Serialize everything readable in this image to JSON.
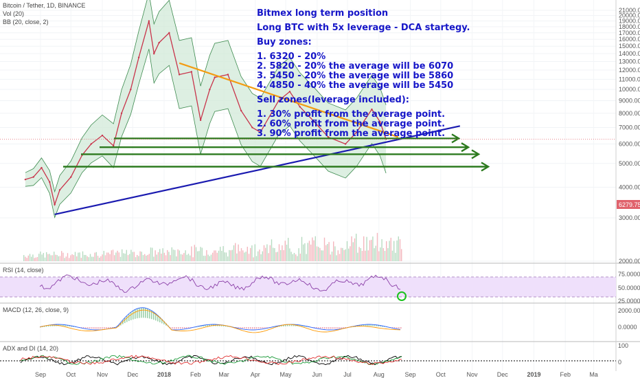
{
  "header": {
    "symbol": "Bitcoin / Tether, 1D, BINANCE",
    "vol_label": "Vol (20)",
    "bb_label": "BB (20, close, 2)"
  },
  "price_badge": "6279.75",
  "annotation": [
    "Bitmex long term position",
    "",
    "Long BTC with 5x leverage - DCA startegy.",
    "",
    "Buy zones:",
    "",
    "1. 6320 - 20%",
    "2. 5820 - 20% the average will be 6070",
    "3. 5450 - 20% the average will be 5860",
    "4. 4850 - 40% the average will be 5450",
    "",
    "Sell zones(leverage included):",
    "",
    "1. 30% profit from the average point.",
    "2. 60% profit from the average point.",
    "3. 90% profit from the average point."
  ],
  "panes": {
    "rsi": {
      "label": "RSI (14, close)",
      "ticks": [
        "75.0000",
        "50.0000",
        "25.0000"
      ]
    },
    "macd": {
      "label": "MACD (12, 26, close, 9)",
      "ticks": [
        "2000.0000",
        "0.0000"
      ]
    },
    "adx": {
      "label": "ADX and DI (14, 20)",
      "ticks": [
        "100",
        "0"
      ]
    }
  },
  "colors": {
    "price_line": "#c8334a",
    "bb_band": "#cfe8d5",
    "bb_line": "#3c8a4e",
    "trend_down": "#f39c12",
    "trend_up": "#1a1ab0",
    "buy_arrow": "#2c7a1e",
    "note_text": "#1616c8",
    "rsi_fill": "#efe0fb",
    "rsi_line": "#8b3fa8",
    "circle": "#19c21c",
    "badge": "#e0626c"
  },
  "chart_data": {
    "type": "line",
    "title": "Bitcoin / Tether, 1D, BINANCE",
    "y_scale": "log",
    "ylim": [
      2000,
      21500
    ],
    "y_ticks": [
      2000,
      3000,
      4000,
      5000,
      6000,
      7000,
      8000,
      9000,
      10000,
      11000,
      12000,
      13000,
      14000,
      15000,
      16000,
      17000,
      18000,
      19000,
      20000,
      21000
    ],
    "x_ticks": [
      "Sep",
      "Oct",
      "Nov",
      "Dec",
      "2018",
      "Feb",
      "Mar",
      "Apr",
      "May",
      "Jun",
      "Jul",
      "Aug",
      "Sep",
      "Oct",
      "Nov",
      "Dec",
      "2019",
      "Feb",
      "Ma"
    ],
    "x": [
      "2017-08-17",
      "2017-08-25",
      "2017-09-02",
      "2017-09-10",
      "2017-09-15",
      "2017-09-20",
      "2017-10-01",
      "2017-10-12",
      "2017-10-21",
      "2017-11-01",
      "2017-11-12",
      "2017-11-20",
      "2017-11-29",
      "2017-12-07",
      "2017-12-17",
      "2017-12-22",
      "2017-12-27",
      "2018-01-06",
      "2018-01-16",
      "2018-01-28",
      "2018-02-06",
      "2018-02-15",
      "2018-02-20",
      "2018-03-05",
      "2018-03-18",
      "2018-03-29",
      "2018-04-06",
      "2018-04-24",
      "2018-05-05",
      "2018-05-15",
      "2018-05-29",
      "2018-06-12",
      "2018-06-29",
      "2018-07-10",
      "2018-07-25",
      "2018-08-02",
      "2018-08-08"
    ],
    "close": [
      4300,
      4400,
      4800,
      4200,
      3400,
      3900,
      4400,
      5400,
      6000,
      6500,
      5900,
      8000,
      10000,
      13500,
      19000,
      14000,
      15500,
      17000,
      11500,
      11800,
      7500,
      10000,
      11200,
      11500,
      8200,
      7000,
      6700,
      9000,
      9800,
      8500,
      7400,
      6400,
      6000,
      6700,
      8300,
      7400,
      6280
    ],
    "trendlines": [
      {
        "from": [
          "2018-01-16",
          12800
        ],
        "to": [
          "2018-08-20",
          6400
        ]
      },
      {
        "from": [
          "2017-09-15",
          3100
        ],
        "to": [
          "2018-10-20",
          7100
        ]
      }
    ],
    "buy_zones": [
      6320,
      5820,
      5450,
      4850
    ]
  }
}
